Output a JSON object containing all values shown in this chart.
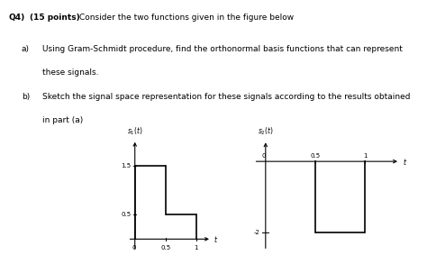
{
  "bg_color": "#ffffff",
  "text_color": "#000000",
  "signal_color": "#000000",
  "s1_label": "$s_1(t)$",
  "s2_label": "$s_2(t)$",
  "t_label": "$t$",
  "title_bold": "Q4) (15 points)",
  "title_normal": "  Consider the two functions given in the figure below",
  "item_a_label": "a)",
  "item_a_text": "Using Gram-Schmidt procedure, find the orthonormal basis functions that can represent",
  "item_a_text2": "these signals.",
  "item_b_label": "b)",
  "item_b_text": "Sketch the signal space representation for these signals according to the results obtained",
  "item_b_text2": "in part (a)"
}
